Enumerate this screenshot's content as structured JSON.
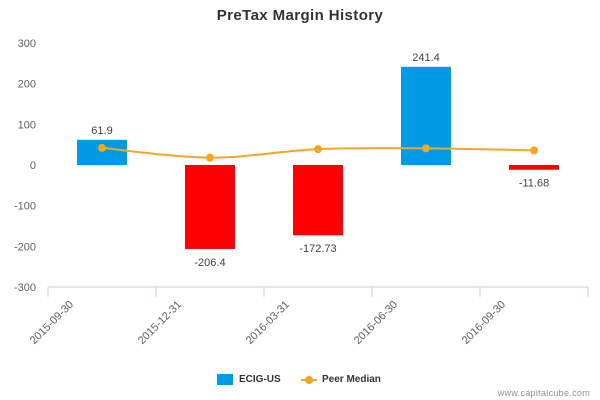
{
  "chart_data": {
    "type": "bar",
    "title": "PreTax Margin History",
    "categories": [
      "2015-09-30",
      "2015-12-31",
      "2016-03-31",
      "2016-06-30",
      "2016-09-30"
    ],
    "ylim": [
      -300,
      300
    ],
    "yticks": [
      -300,
      -200,
      -100,
      0,
      100,
      200,
      300
    ],
    "series": [
      {
        "name": "ECIG-US",
        "type": "bar",
        "values": [
          61.9,
          -206.4,
          -172.73,
          241.4,
          -11.68
        ],
        "data_labels": [
          "61.9",
          "-206.4",
          "-172.73",
          "241.4",
          "-11.68"
        ],
        "color_positive": "#0099e6",
        "color_negative": "#ff0000"
      },
      {
        "name": "Peer Median",
        "type": "line",
        "values": [
          42,
          18,
          39,
          41,
          36
        ],
        "color": "#f5a623"
      }
    ],
    "legend_position": "bottom-center",
    "grid": false
  },
  "credit": "www.capitalcube.com"
}
